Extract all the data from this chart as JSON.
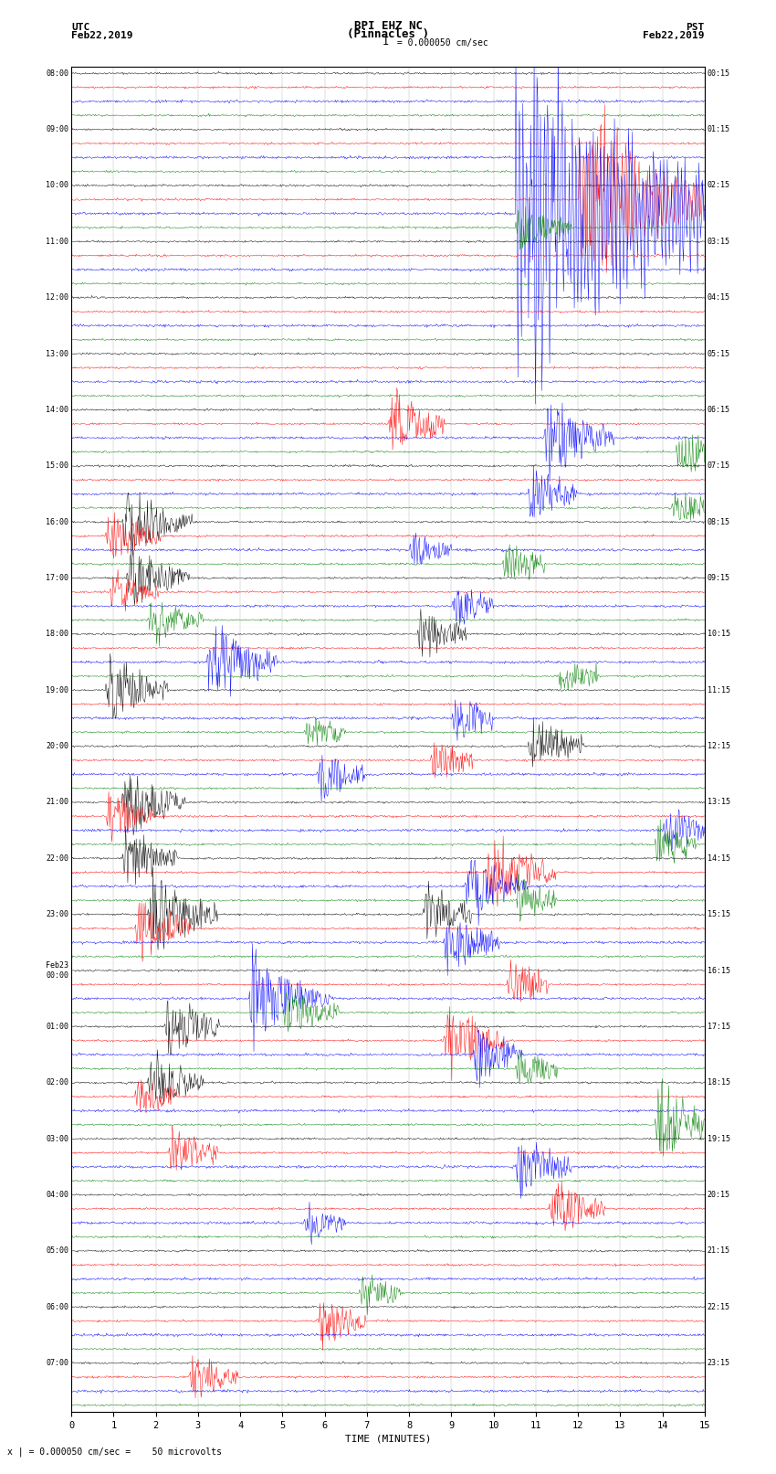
{
  "title_line1": "BPI EHZ NC",
  "title_line2": "(Pinnacles )",
  "scale_label": "I = 0.000050 cm/sec",
  "left_header_line1": "UTC",
  "left_header_line2": "Feb22,2019",
  "right_header_line1": "PST",
  "right_header_line2": "Feb22,2019",
  "xlabel": "TIME (MINUTES)",
  "bottom_note": "x | = 0.000050 cm/sec =    50 microvolts",
  "left_times": [
    "08:00",
    "09:00",
    "10:00",
    "11:00",
    "12:00",
    "13:00",
    "14:00",
    "15:00",
    "16:00",
    "17:00",
    "18:00",
    "19:00",
    "20:00",
    "21:00",
    "22:00",
    "23:00",
    "Feb23\n00:00",
    "01:00",
    "02:00",
    "03:00",
    "04:00",
    "05:00",
    "06:00",
    "07:00"
  ],
  "right_times": [
    "00:15",
    "01:15",
    "02:15",
    "03:15",
    "04:15",
    "05:15",
    "06:15",
    "07:15",
    "08:15",
    "09:15",
    "10:15",
    "11:15",
    "12:15",
    "13:15",
    "14:15",
    "15:15",
    "16:15",
    "17:15",
    "18:15",
    "19:15",
    "20:15",
    "21:15",
    "22:15",
    "23:15"
  ],
  "n_rows": 24,
  "n_traces_per_row": 4,
  "trace_colors": [
    "black",
    "red",
    "blue",
    "green"
  ],
  "x_min": 0,
  "x_max": 15,
  "x_ticks": [
    0,
    1,
    2,
    3,
    4,
    5,
    6,
    7,
    8,
    9,
    10,
    11,
    12,
    13,
    14,
    15
  ],
  "bg_color": "white",
  "seed": 42
}
